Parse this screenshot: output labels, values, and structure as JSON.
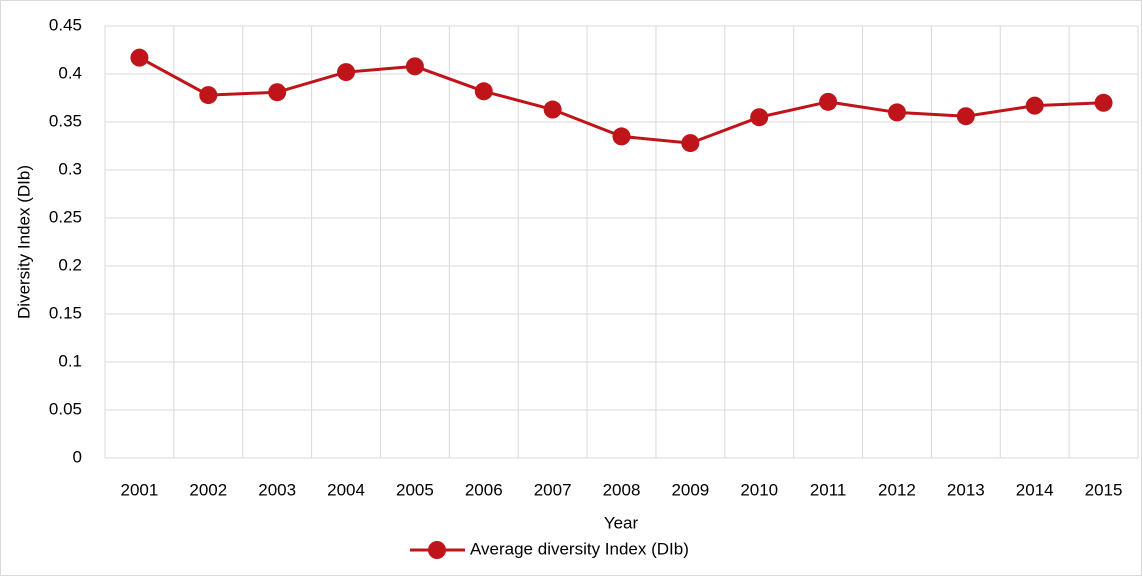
{
  "chart_data": {
    "type": "line",
    "x_label": "Year",
    "y_label": "Diversity Index (DIb)",
    "categories": [
      "2001",
      "2002",
      "2003",
      "2004",
      "2005",
      "2006",
      "2007",
      "2008",
      "2009",
      "2010",
      "2011",
      "2012",
      "2013",
      "2014",
      "2015"
    ],
    "series": [
      {
        "name": "Average diversity Index (DIb)",
        "color": "#c0141b",
        "values": [
          0.417,
          0.378,
          0.381,
          0.402,
          0.408,
          0.382,
          0.363,
          0.335,
          0.328,
          0.355,
          0.371,
          0.36,
          0.356,
          0.367,
          0.37
        ]
      }
    ],
    "ylim": [
      0,
      0.45
    ],
    "yticks": [
      0,
      0.05,
      0.1,
      0.15,
      0.2,
      0.25,
      0.3,
      0.35,
      0.4,
      0.45
    ],
    "grid": true,
    "legend": "bottom"
  }
}
